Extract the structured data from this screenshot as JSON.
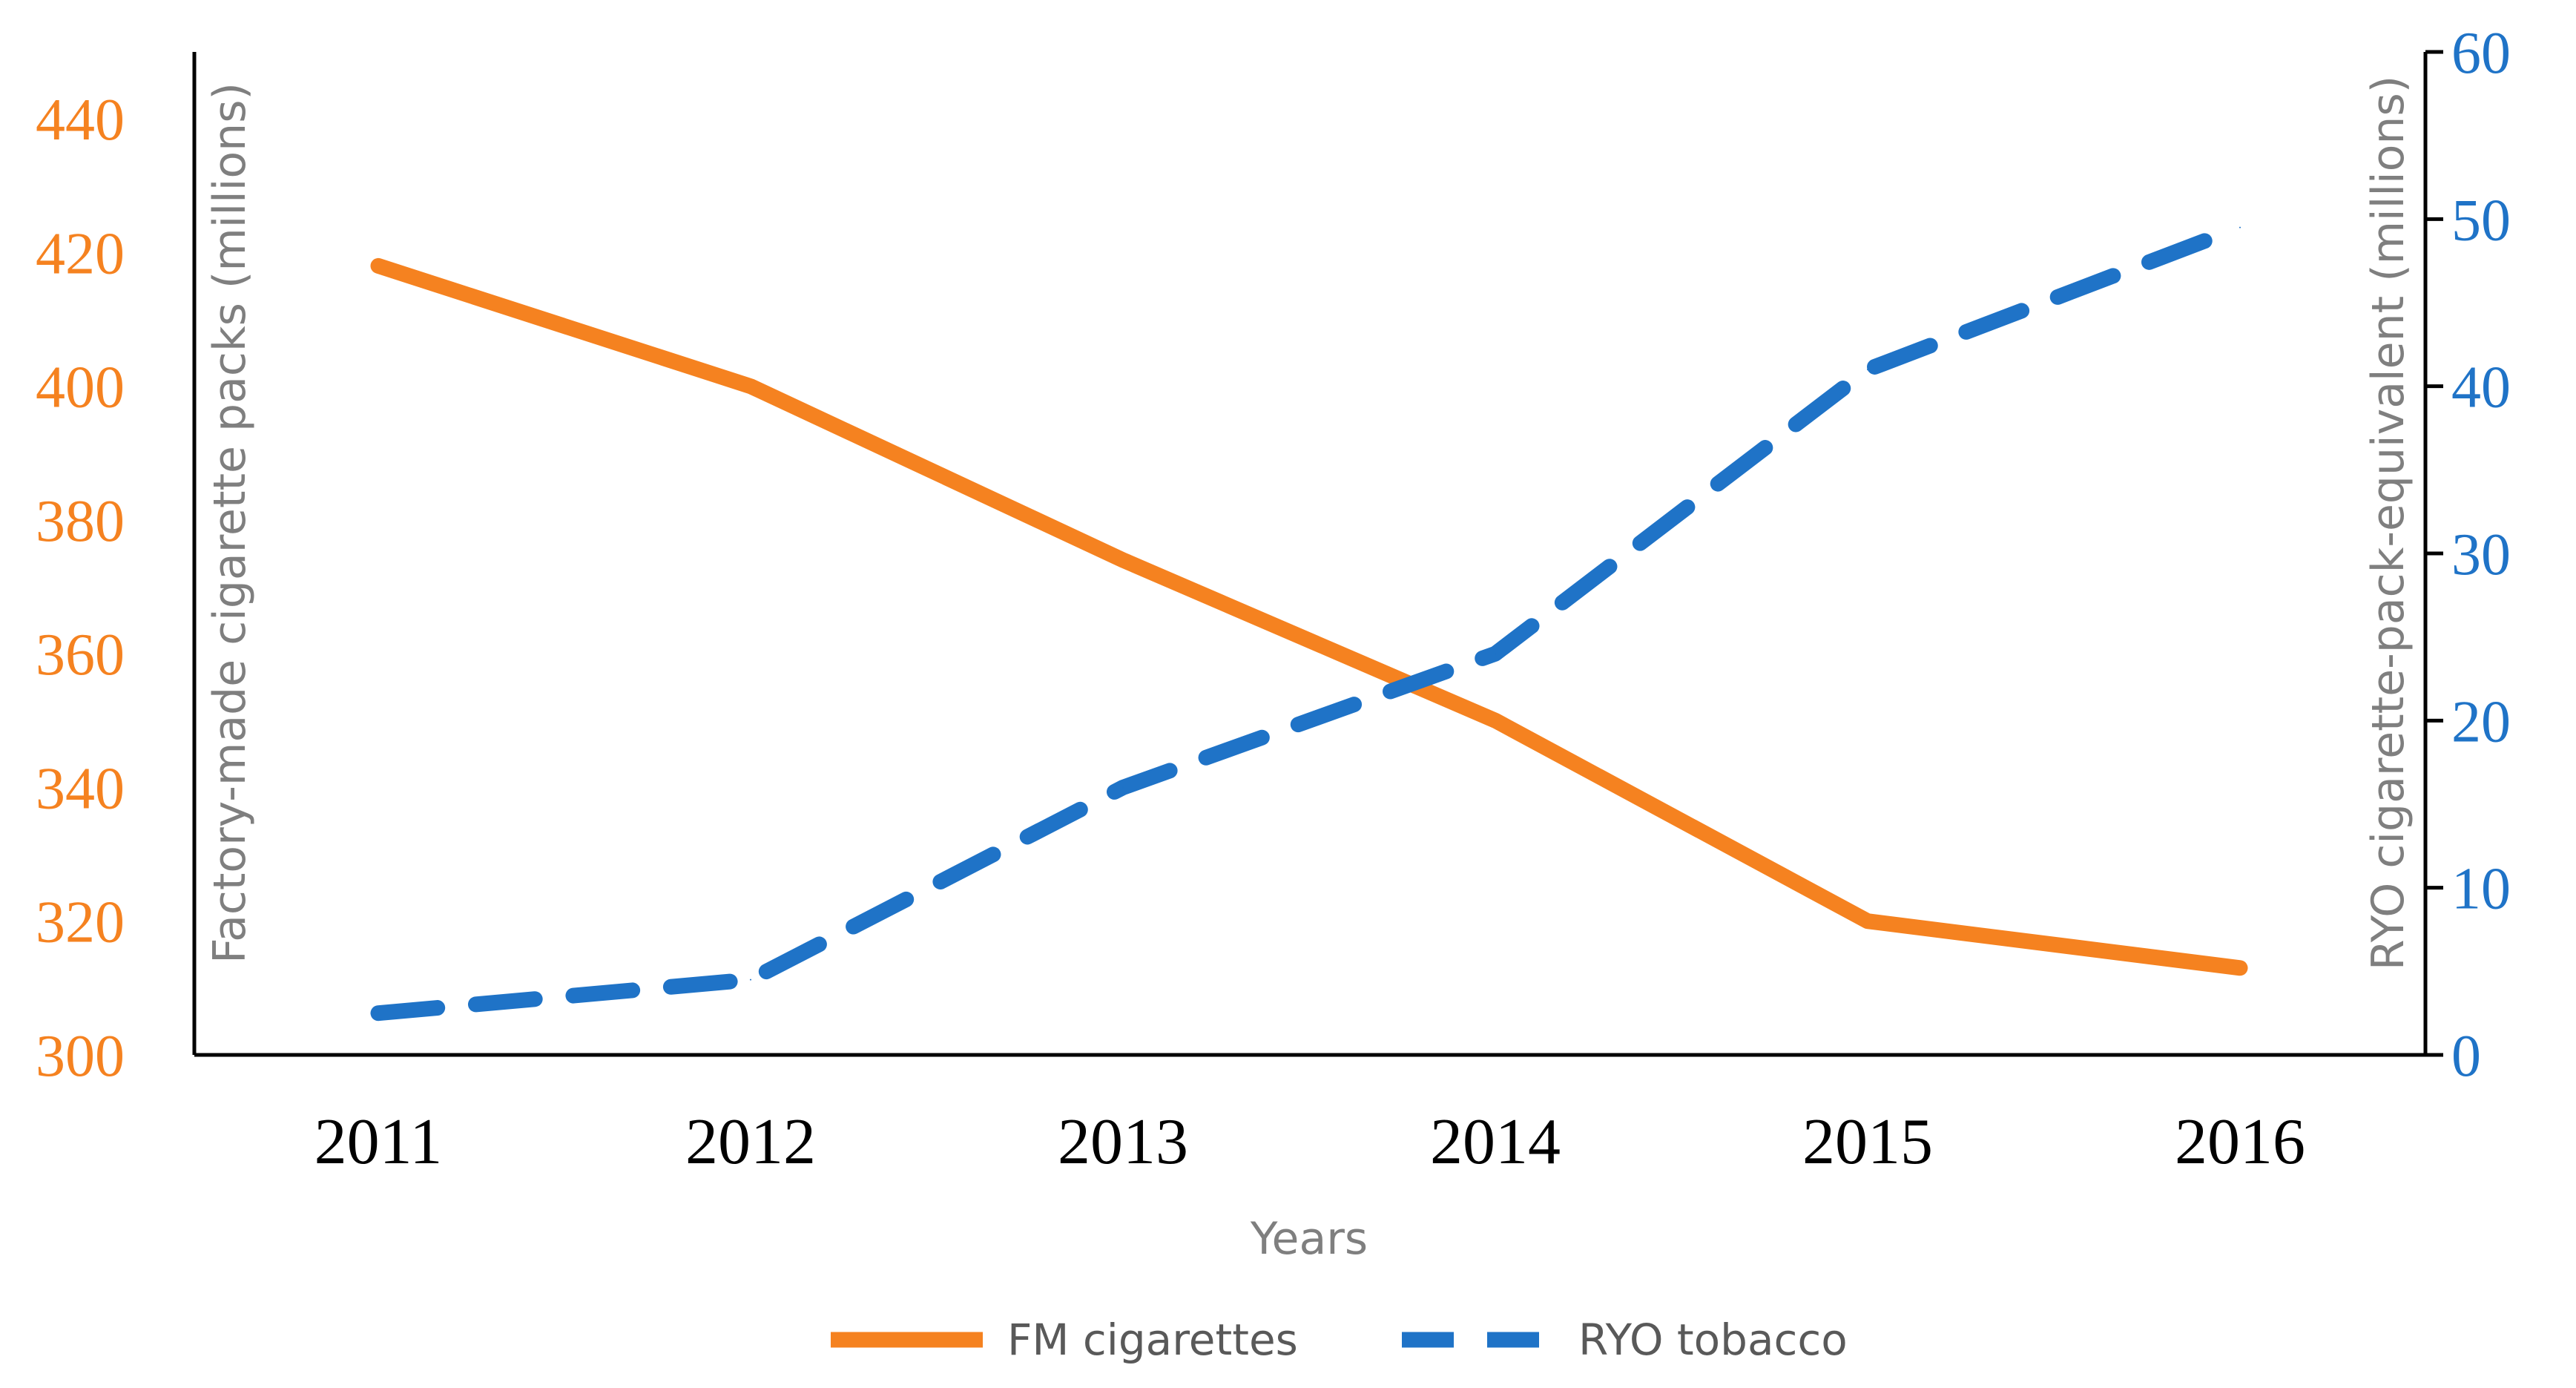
{
  "chart_data": {
    "type": "line",
    "categories": [
      "2011",
      "2012",
      "2013",
      "2014",
      "2015",
      "2016"
    ],
    "series": [
      {
        "name": "FM cigarettes",
        "axis": "left",
        "style": "solid",
        "color": "#f58220",
        "values": [
          418,
          400,
          374,
          350,
          320,
          313
        ]
      },
      {
        "name": "RYO tobacco",
        "axis": "right",
        "style": "dashed",
        "color": "#1f73c7",
        "values": [
          2.5,
          4.5,
          16,
          24,
          41,
          49.5
        ]
      }
    ],
    "xlabel": "Years",
    "ylabel_left": "Factory-made cigarette packs (millions)",
    "ylabel_right": "RYO cigarette-pack-equivalent (millions)",
    "ylim_left": [
      300,
      450
    ],
    "yticks_left": [
      300,
      320,
      340,
      360,
      380,
      400,
      420,
      440
    ],
    "ylim_right": [
      0,
      60
    ],
    "yticks_right": [
      0,
      10,
      20,
      30,
      40,
      50,
      60
    ],
    "legend_position": "bottom-center",
    "grid": false
  }
}
